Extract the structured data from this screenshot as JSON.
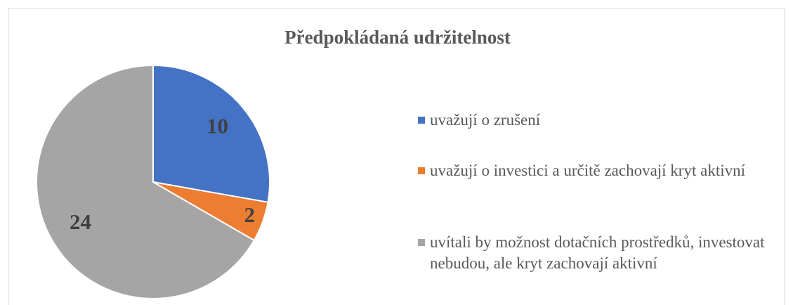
{
  "chart_data": {
    "type": "pie",
    "title": "Předpokládaná udržitelnost",
    "categories": [
      "uvažují o zrušení",
      "uvažují o investici a určitě zachovají kryt aktivní",
      "uvítali by možnost dotačních prostředků, investovat nebudou, ale kryt zachovají aktivní"
    ],
    "values": [
      10,
      2,
      24
    ],
    "colors": [
      "#4472c4",
      "#ed7d31",
      "#a5a5a5"
    ],
    "legend": "right"
  }
}
